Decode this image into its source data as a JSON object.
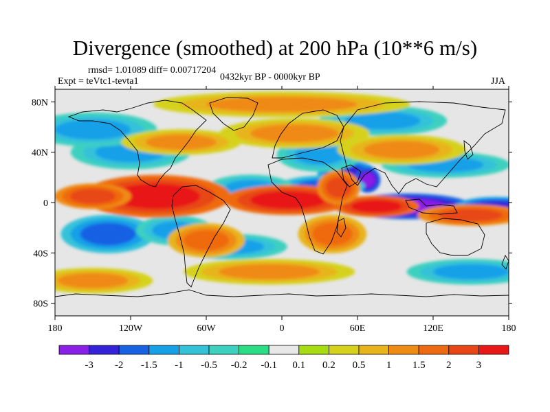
{
  "title": "Divergence (smoothed) at 200 hPa (10**6 m/s)",
  "stats_text": "rmsd= 1.01089 diff= 0.00717204",
  "period_text": "0432kyr BP - 0000kyr BP",
  "experiment_text": "Expt = teVtc1-tevta1",
  "season_text": "JJA",
  "map": {
    "projection": "cylindrical equidistant",
    "lon_range": [
      -180,
      180
    ],
    "lat_range": [
      -90,
      90
    ],
    "lat_ticks": [
      {
        "value": 80,
        "label": "80N"
      },
      {
        "value": 40,
        "label": "40N"
      },
      {
        "value": 0,
        "label": "0"
      },
      {
        "value": -40,
        "label": "40S"
      },
      {
        "value": -80,
        "label": "80S"
      }
    ],
    "lon_ticks": [
      {
        "value": -180,
        "label": "180"
      },
      {
        "value": -120,
        "label": "120W"
      },
      {
        "value": -60,
        "label": "60W"
      },
      {
        "value": 0,
        "label": "0"
      },
      {
        "value": 60,
        "label": "60E"
      },
      {
        "value": 120,
        "label": "120E"
      },
      {
        "value": 180,
        "label": "180"
      }
    ],
    "background_color": "#e6e6e6",
    "coastline_color": "#000000",
    "convergence_blobs": [
      {
        "lon": 100,
        "lat": -3,
        "rlon": 30,
        "rlat": 6,
        "level": 0
      },
      {
        "lon": 170,
        "lat": -4,
        "rlon": 20,
        "rlat": 5,
        "level": 1
      },
      {
        "lon": 52,
        "lat": 22,
        "rlon": 14,
        "rlat": 7,
        "level": 1
      },
      {
        "lon": 68,
        "lat": 18,
        "rlon": 6,
        "rlat": 6,
        "level": 0
      },
      {
        "lon": 32,
        "lat": 13,
        "rlon": 20,
        "rlat": 5,
        "level": 2
      },
      {
        "lon": -138,
        "lat": -25,
        "rlon": 22,
        "rlat": 9,
        "level": 2
      },
      {
        "lon": -120,
        "lat": 40,
        "rlon": 28,
        "rlat": 8,
        "level": 3
      },
      {
        "lon": -25,
        "lat": 12,
        "rlon": 20,
        "rlat": 6,
        "level": 3
      },
      {
        "lon": -85,
        "lat": -22,
        "rlon": 18,
        "rlat": 7,
        "level": 3
      },
      {
        "lon": 30,
        "lat": 38,
        "rlon": 20,
        "rlat": 8,
        "level": 4
      },
      {
        "lon": 130,
        "lat": 30,
        "rlon": 30,
        "rlat": 6,
        "level": 3
      },
      {
        "lon": -150,
        "lat": 58,
        "rlon": 30,
        "rlat": 8,
        "level": 4
      },
      {
        "lon": -40,
        "lat": -35,
        "rlon": 26,
        "rlat": 6,
        "level": 4
      },
      {
        "lon": 150,
        "lat": -55,
        "rlon": 30,
        "rlat": 6,
        "level": 4
      },
      {
        "lon": 80,
        "lat": 65,
        "rlon": 30,
        "rlat": 7,
        "level": 4
      }
    ],
    "divergence_blobs": [
      {
        "lon": -100,
        "lat": 5,
        "rlon": 35,
        "rlat": 10,
        "level": 0
      },
      {
        "lon": -150,
        "lat": 5,
        "rlon": 18,
        "rlat": 6,
        "level": 1
      },
      {
        "lon": 5,
        "lat": 2,
        "rlon": 30,
        "rlat": 7,
        "level": 0
      },
      {
        "lon": 75,
        "lat": -3,
        "rlon": 20,
        "rlat": 5,
        "level": 0
      },
      {
        "lon": 150,
        "lat": -10,
        "rlon": 25,
        "rlat": 5,
        "level": 1
      },
      {
        "lon": 45,
        "lat": 12,
        "rlon": 10,
        "rlat": 8,
        "level": 1
      },
      {
        "lon": -60,
        "lat": -30,
        "rlon": 18,
        "rlat": 8,
        "level": 2
      },
      {
        "lon": 40,
        "lat": -25,
        "rlon": 16,
        "rlat": 9,
        "level": 2
      },
      {
        "lon": 10,
        "lat": 55,
        "rlon": 35,
        "rlat": 7,
        "level": 3
      },
      {
        "lon": -80,
        "lat": 48,
        "rlon": 28,
        "rlat": 6,
        "level": 3
      },
      {
        "lon": 95,
        "lat": 42,
        "rlon": 30,
        "rlat": 7,
        "level": 3
      },
      {
        "lon": -10,
        "lat": -55,
        "rlon": 40,
        "rlat": 6,
        "level": 4
      },
      {
        "lon": -150,
        "lat": -62,
        "rlon": 28,
        "rlat": 6,
        "level": 4
      },
      {
        "lon": 0,
        "lat": 78,
        "rlon": 60,
        "rlat": 6,
        "level": 4
      }
    ]
  },
  "colorbar": {
    "colors": [
      "#8a1fe6",
      "#3422d9",
      "#1961e3",
      "#15a0e8",
      "#34c2d9",
      "#3cd0bf",
      "#2bdd85",
      "#e8e8e8",
      "#a8dc12",
      "#d6d21c",
      "#e8b41b",
      "#ef8a12",
      "#ee6a10",
      "#e84616",
      "#e81818"
    ],
    "labels": [
      "-3",
      "-2",
      "-1.5",
      "-1",
      "-0.5",
      "-0.2",
      "-0.1",
      "0.1",
      "0.2",
      "0.5",
      "1",
      "1.5",
      "2",
      "3"
    ]
  }
}
